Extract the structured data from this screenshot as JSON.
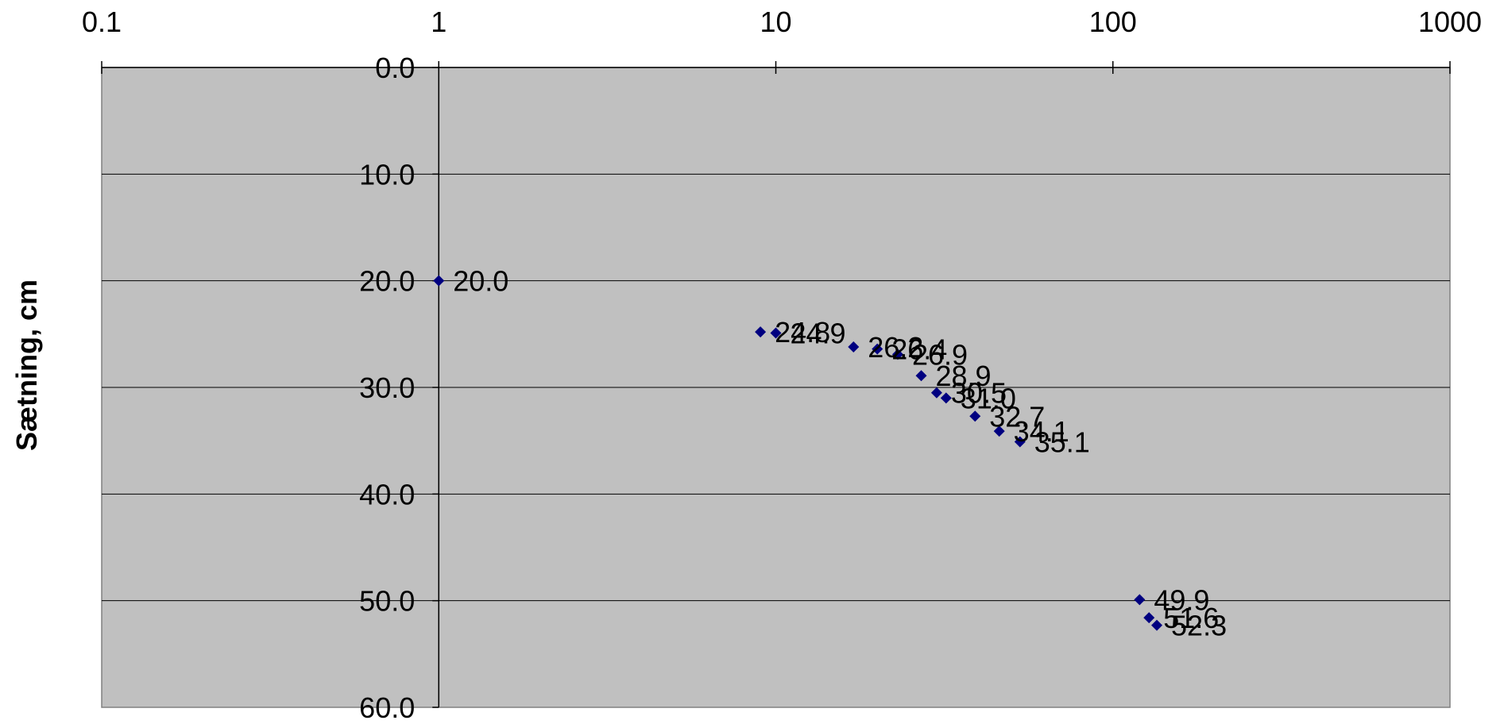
{
  "chart_data": {
    "type": "scatter",
    "title": "",
    "xlabel": "",
    "ylabel": "Sætning, cm",
    "x_scale": "log",
    "x_position": "top",
    "xlim": [
      0.1,
      1000
    ],
    "x_ticks": [
      "0.1",
      "1",
      "10",
      "100",
      "1000"
    ],
    "y_inverted": true,
    "ylim": [
      0,
      60
    ],
    "y_ticks": [
      "0.0",
      "10.0",
      "20.0",
      "30.0",
      "40.0",
      "50.0",
      "60.0"
    ],
    "grid": true,
    "legend": "none",
    "plot_background": "#c0c0c0",
    "marker_color": "#000080",
    "series": [
      {
        "points": [
          {
            "x": 1,
            "y": 20.0,
            "label": "20.0"
          },
          {
            "x": 9,
            "y": 24.8,
            "label": "24.8"
          },
          {
            "x": 10,
            "y": 24.9,
            "label": "24.9"
          },
          {
            "x": 17,
            "y": 26.2,
            "label": "26.2"
          },
          {
            "x": 20,
            "y": 26.4,
            "label": "26.4"
          },
          {
            "x": 23,
            "y": 26.9,
            "label": "26.9"
          },
          {
            "x": 27,
            "y": 28.9,
            "label": "28.9"
          },
          {
            "x": 30,
            "y": 30.5,
            "label": "30.5"
          },
          {
            "x": 32,
            "y": 31.0,
            "label": "31.0"
          },
          {
            "x": 39,
            "y": 32.7,
            "label": "32.7"
          },
          {
            "x": 46,
            "y": 34.1,
            "label": "34.1"
          },
          {
            "x": 53,
            "y": 35.1,
            "label": "35.1"
          },
          {
            "x": 120,
            "y": 49.9,
            "label": "49.9"
          },
          {
            "x": 128,
            "y": 51.6,
            "label": "51.6"
          },
          {
            "x": 135,
            "y": 52.3,
            "label": "52.3"
          }
        ]
      }
    ]
  }
}
